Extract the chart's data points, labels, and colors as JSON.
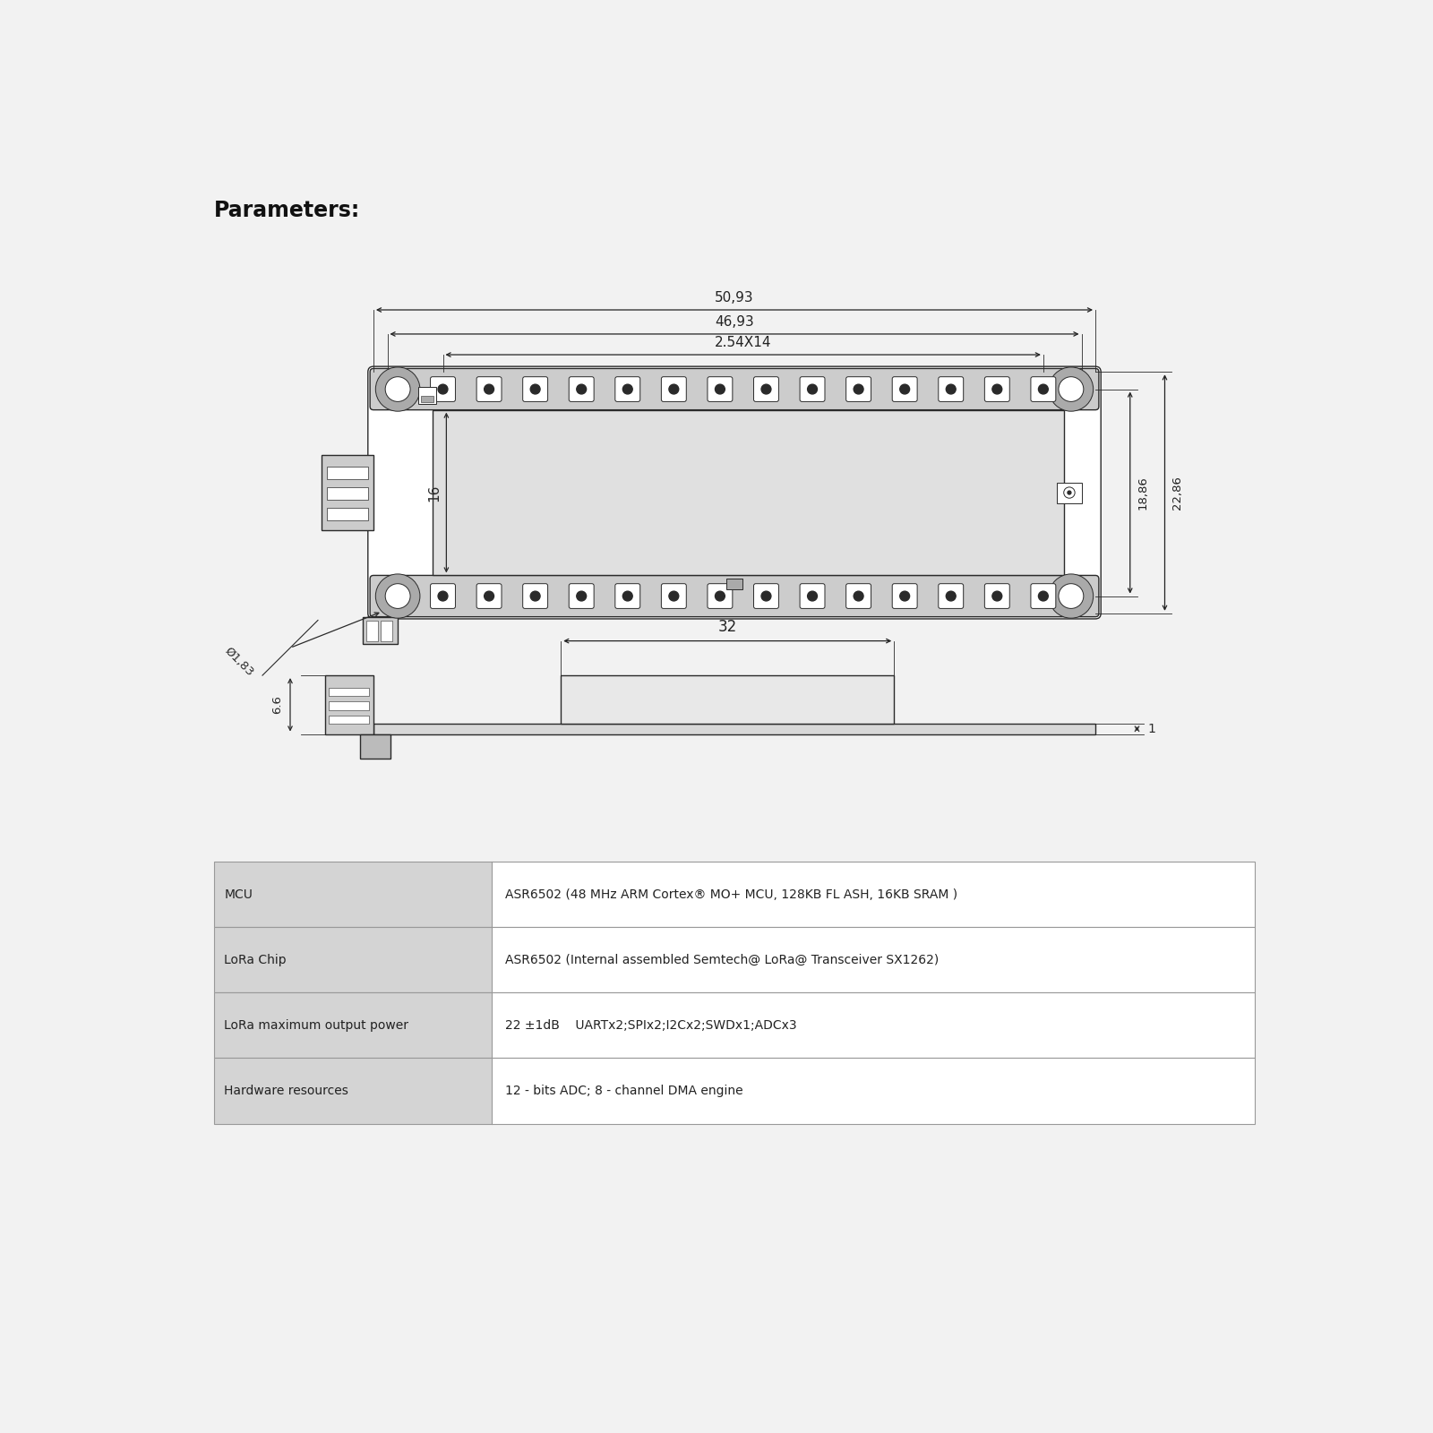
{
  "title": "Parameters:",
  "bg_color": "#f2f2f2",
  "line_color": "#2a2a2a",
  "table_header_bg": "#d4d4d4",
  "table_alt_bg": "#ffffff",
  "table_border": "#999999",
  "table_rows": [
    [
      "MCU",
      "ASR6502 (48 MHz ARM Cortex® MO+ MCU, 128KB FL ASH, 16KB SRAM )"
    ],
    [
      "LoRa Chip",
      "ASR6502 (Internal assembled Semtech@ LoRa@ Transceiver SX1262)"
    ],
    [
      "LoRa maximum output power",
      "22 ±1dB    UARTx2;SPIx2;I2Cx2;SWDx1;ADCx3"
    ],
    [
      "Hardware resources",
      "12 - bits ADC; 8 - channel DMA engine"
    ]
  ],
  "dim_50_93": "50,93",
  "dim_46_93": "46,93",
  "dim_2_54x14": "2.54X14",
  "dim_16": "16",
  "dim_18_86": "18,86",
  "dim_22_86": "22,86",
  "dim_dia_1_83": "Ø1,83",
  "dim_32": "32",
  "dim_6_6": "6.6",
  "dim_1": "1"
}
